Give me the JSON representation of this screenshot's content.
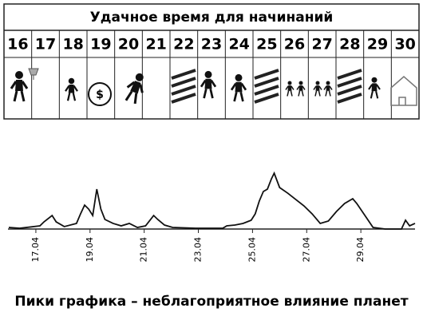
{
  "table": {
    "title": "Удачное время для начинаний",
    "days": [
      16,
      17,
      18,
      19,
      20,
      21,
      22,
      23,
      24,
      25,
      26,
      27,
      28,
      29,
      30
    ]
  },
  "chart_data": {
    "type": "line",
    "title": "Пики графика – неблагоприятное влияние планет",
    "x": [
      16.0,
      16.4,
      17.15,
      17.3,
      17.6,
      17.75,
      18.05,
      18.5,
      18.65,
      18.8,
      18.95,
      19.1,
      19.25,
      19.4,
      19.55,
      19.85,
      20.15,
      20.45,
      20.75,
      21.05,
      21.35,
      21.5,
      21.75,
      22.05,
      22.9,
      23.9,
      24.05,
      24.35,
      24.65,
      24.95,
      25.1,
      25.25,
      25.4,
      25.55,
      25.7,
      25.8,
      26.0,
      26.3,
      26.6,
      26.9,
      27.2,
      27.5,
      27.8,
      28.1,
      28.4,
      28.7,
      28.85,
      29.15,
      29.45,
      29.9,
      30.5,
      30.65,
      30.8,
      31.0
    ],
    "series": [
      {
        "color": "#111111",
        "values": [
          2.5,
          1.2,
          5,
          11.2,
          21.2,
          11.2,
          3.8,
          8.8,
          23.8,
          37.5,
          31.2,
          21.2,
          62.5,
          31.2,
          15,
          8.8,
          5,
          8.8,
          2.5,
          5,
          21.2,
          15,
          6.2,
          2.5,
          1.2,
          1.2,
          5,
          6.2,
          8.8,
          13.8,
          23.8,
          43.8,
          58.8,
          62.5,
          78.8,
          87.5,
          65,
          56.2,
          46.2,
          36.2,
          23.8,
          8.8,
          12.5,
          27.5,
          40,
          47.5,
          40,
          21.2,
          2.5,
          0,
          0,
          13.8,
          5,
          8.8
        ]
      }
    ],
    "xlim": [
      16,
      31
    ],
    "ylim": [
      0,
      100
    ],
    "xticks": [
      {
        "value": 17,
        "label": "17.04"
      },
      {
        "value": 19,
        "label": "19.04"
      },
      {
        "value": 21,
        "label": "21.04"
      },
      {
        "value": 23,
        "label": "23.04"
      },
      {
        "value": 25,
        "label": "25.04"
      },
      {
        "value": 27,
        "label": "27.04"
      },
      {
        "value": 29,
        "label": "29.04"
      }
    ]
  }
}
